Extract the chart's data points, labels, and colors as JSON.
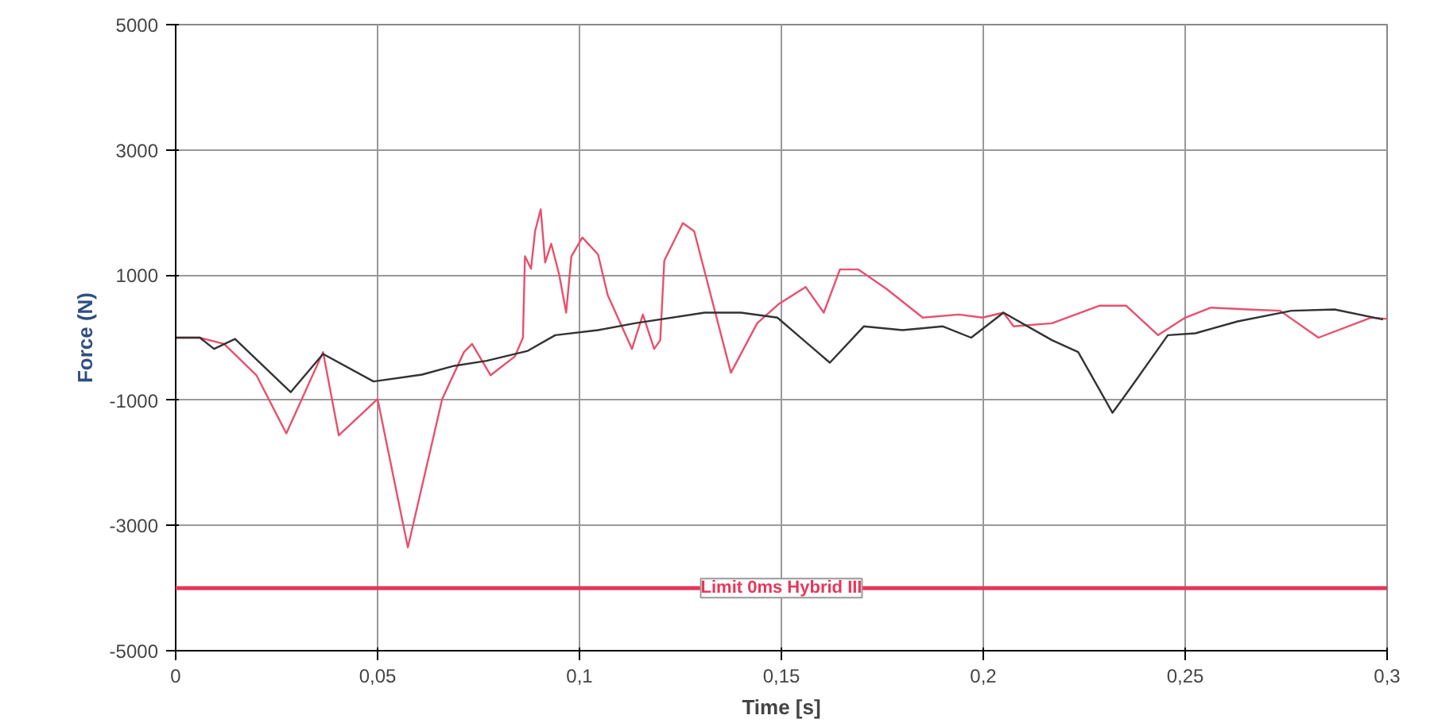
{
  "chart_data": {
    "type": "line",
    "xlabel": "Time [s]",
    "ylabel": "Force (N)",
    "xlim": [
      0,
      0.3
    ],
    "ylim": [
      -5000,
      5000
    ],
    "xticks": [
      0,
      {
        "value": 0.05,
        "label": "0,05"
      },
      {
        "value": 0.1,
        "label": "0,1"
      },
      {
        "value": 0.15,
        "label": "0,15"
      },
      {
        "value": 0.2,
        "label": "0,2"
      },
      {
        "value": 0.25,
        "label": "0,25"
      },
      {
        "value": 0.3,
        "label": "0,3"
      }
    ],
    "yticks": [
      -5000,
      -3000,
      -1000,
      1000,
      3000,
      5000
    ],
    "grid": true,
    "marker": "none",
    "line_style": "solid",
    "series": [
      {
        "color": "#e8506e",
        "x": [
          0,
          0.006,
          0.012,
          0.02,
          0.0274,
          0.0365,
          0.0404,
          0.05,
          0.0575,
          0.066,
          0.0714,
          0.0734,
          0.078,
          0.084,
          0.086,
          0.0865,
          0.088,
          0.089,
          0.0904,
          0.0915,
          0.093,
          0.095,
          0.0967,
          0.098,
          0.1007,
          0.1046,
          0.107,
          0.113,
          0.1157,
          0.1185,
          0.12,
          0.121,
          0.1256,
          0.1284,
          0.1375,
          0.144,
          0.1494,
          0.156,
          0.1605,
          0.1645,
          0.169,
          0.176,
          0.185,
          0.194,
          0.1998,
          0.205,
          0.2075,
          0.217,
          0.2287,
          0.2354,
          0.2433,
          0.25,
          0.2564,
          0.2657,
          0.2735,
          0.283,
          0.296,
          0.3
        ],
        "values": [
          0,
          0,
          -100,
          -600,
          -1530,
          -230,
          -1560,
          -980,
          -3350,
          -980,
          -230,
          -100,
          -600,
          -300,
          0,
          1300,
          1100,
          1700,
          2050,
          1200,
          1500,
          1000,
          400,
          1300,
          1600,
          1330,
          680,
          -180,
          370,
          -180,
          -40,
          1230,
          1830,
          1700,
          -560,
          230,
          540,
          810,
          400,
          1090,
          1090,
          780,
          320,
          370,
          320,
          400,
          180,
          230,
          510,
          510,
          40,
          320,
          480,
          450,
          430,
          0,
          320,
          300
        ]
      },
      {
        "color": "#333333",
        "x": [
          0,
          0.006,
          0.0095,
          0.0147,
          0.0285,
          0.0365,
          0.049,
          0.061,
          0.069,
          0.077,
          0.0872,
          0.094,
          0.1046,
          0.1137,
          0.131,
          0.14,
          0.149,
          0.162,
          0.1704,
          0.18,
          0.19,
          0.197,
          0.205,
          0.217,
          0.2235,
          0.232,
          0.2366,
          0.2457,
          0.2525,
          0.263,
          0.2763,
          0.287,
          0.299
        ],
        "values": [
          0,
          0,
          -180,
          -20,
          -870,
          -260,
          -700,
          -590,
          -450,
          -370,
          -210,
          40,
          120,
          230,
          400,
          400,
          320,
          -400,
          180,
          120,
          180,
          0,
          400,
          -40,
          -230,
          -1200,
          -790,
          40,
          70,
          260,
          430,
          450,
          290
        ]
      }
    ],
    "ref_lines": [
      {
        "axis": "y",
        "value": -4000,
        "label": "Limit 0ms Hybrid III",
        "color": "#e8365a"
      }
    ]
  }
}
